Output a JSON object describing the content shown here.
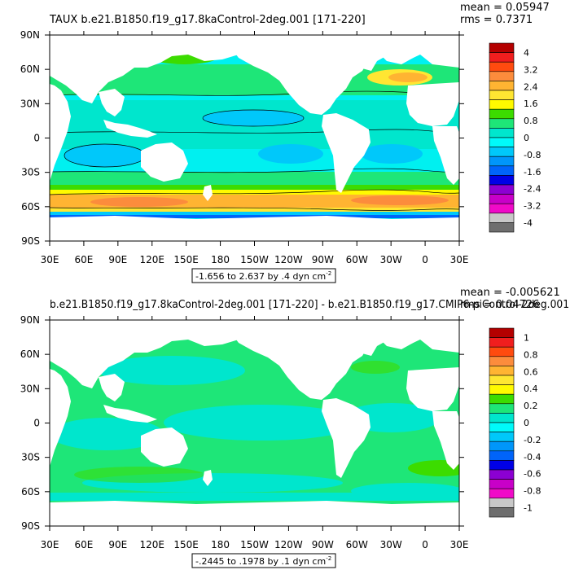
{
  "panels": [
    {
      "title": "TAUX b.e21.B1850.f19_g17.8kaControl-2deg.001 [171-220]",
      "mean": "mean = 0.05947",
      "rms": "rms = 0.7371",
      "range_note": "-1.656 to 2.637 by .4 dyn cm",
      "range_sup": "-2",
      "legend": {
        "levels": [
          "4",
          "3.2",
          "2.4",
          "1.6",
          "0.8",
          "0",
          "-0.8",
          "-1.6",
          "-2.4",
          "-3.2",
          "-4"
        ],
        "colors": [
          "#b40000",
          "#f01e1e",
          "#ff4b0f",
          "#fc8c3c",
          "#ffb432",
          "#ffe632",
          "#fffa00",
          "#3cdc00",
          "#1ee678",
          "#00e6cd",
          "#00fafa",
          "#00c8fa",
          "#0096fa",
          "#0064fa",
          "#0000e6",
          "#8c00d2",
          "#c800c8",
          "#f00ac8",
          "#c8c8c8",
          "#6e6e6e"
        ]
      },
      "fill_color": "#00f5f5"
    },
    {
      "title": "b.e21.B1850.f19_g17.8kaControl-2deg.001 [171-220] - b.e21.B1850.f19_g17.CMIP6-piControl-2deg.001",
      "mean": "mean = -0.005621",
      "rms": "rms = 0.04726",
      "range_note": "-.2445 to .1978 by .1 dyn cm",
      "range_sup": "-2",
      "legend": {
        "levels": [
          "1",
          "0.8",
          "0.6",
          "0.4",
          "0.2",
          "0",
          "-0.2",
          "-0.4",
          "-0.6",
          "-0.8",
          "-1"
        ],
        "colors": [
          "#b40000",
          "#f01e1e",
          "#ff4b0f",
          "#fc8c3c",
          "#ffb432",
          "#ffe632",
          "#fffa00",
          "#3cdc00",
          "#1ee678",
          "#00e6cd",
          "#00fafa",
          "#00c8fa",
          "#0096fa",
          "#0064fa",
          "#0000e6",
          "#8c00d2",
          "#c800c8",
          "#f00ac8",
          "#c8c8c8",
          "#6e6e6e"
        ]
      },
      "fill_color": "#20e882"
    }
  ],
  "axes": {
    "lon_ticks": [
      "30E",
      "60E",
      "90E",
      "120E",
      "150E",
      "180",
      "150W",
      "120W",
      "90W",
      "60W",
      "30W",
      "0",
      "30E"
    ],
    "lat_ticks": [
      "90N",
      "60N",
      "30N",
      "0",
      "30S",
      "60S",
      "90S"
    ]
  }
}
